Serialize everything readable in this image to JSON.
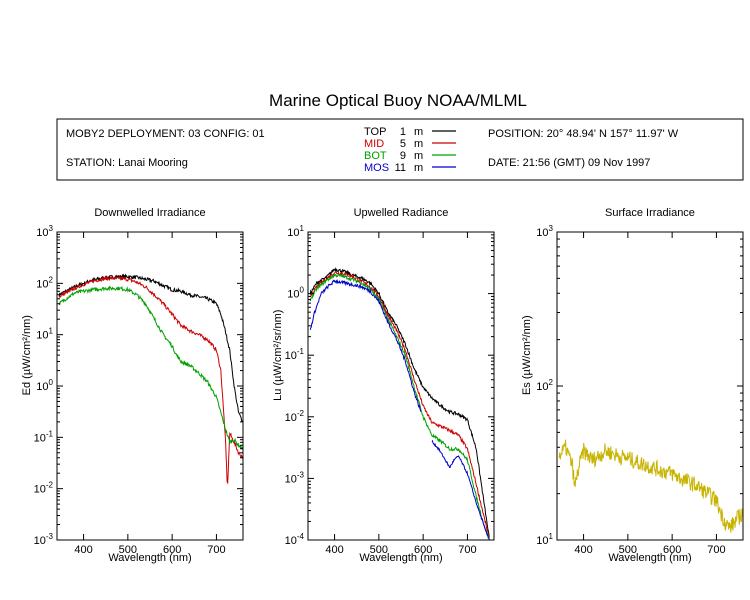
{
  "title": "Marine Optical Buoy NOAA/MLML",
  "info": {
    "deployment": "MOBY2 DEPLOYMENT: 03 CONFIG: 01",
    "station": "STATION: Lanai Mooring",
    "position": "POSITION: 20° 48.94' N   157° 11.97' W",
    "date": "DATE: 21:56 (GMT) 09 Nov 1997",
    "legend": [
      {
        "label": "TOP",
        "depth": "1",
        "unit": "m",
        "color": "#000000"
      },
      {
        "label": "MID",
        "depth": "5",
        "unit": "m",
        "color": "#cc0000"
      },
      {
        "label": "BOT",
        "depth": "9",
        "unit": "m",
        "color": "#00a000"
      },
      {
        "label": "MOS",
        "depth": "11",
        "unit": "m",
        "color": "#0000cc"
      }
    ]
  },
  "chart_data": [
    {
      "type": "line",
      "title": "Downwelled Irradiance",
      "xlabel": "Wavelength (nm)",
      "ylabel": "Ed  (µW/cm²/nm)",
      "xlim": [
        340,
        760
      ],
      "ylim": [
        0.001,
        1000
      ],
      "yscale": "log",
      "xticks": [
        400,
        500,
        600,
        700
      ],
      "yticks": [
        {
          "v": 0.001,
          "b": "10",
          "e": "-3"
        },
        {
          "v": 0.01,
          "b": "10",
          "e": "-2"
        },
        {
          "v": 0.1,
          "b": "10",
          "e": "-1"
        },
        {
          "v": 1,
          "b": "10",
          "e": "0"
        },
        {
          "v": 10,
          "b": "10",
          "e": "1"
        },
        {
          "v": 100,
          "b": "10",
          "e": "2"
        },
        {
          "v": 1000,
          "b": "10",
          "e": "3"
        }
      ],
      "series": [
        {
          "color": "#000000",
          "noise": 0.08,
          "x": [
            345,
            360,
            380,
            400,
            420,
            450,
            480,
            500,
            520,
            540,
            560,
            580,
            600,
            620,
            640,
            660,
            680,
            690,
            700,
            710,
            720,
            730,
            740,
            750,
            760
          ],
          "y": [
            60,
            70,
            85,
            100,
            115,
            130,
            135,
            135,
            130,
            120,
            110,
            90,
            75,
            70,
            60,
            55,
            50,
            45,
            40,
            25,
            12,
            5,
            1.0,
            0.3,
            0.2
          ]
        },
        {
          "color": "#cc0000",
          "noise": 0.08,
          "x": [
            345,
            360,
            380,
            400,
            420,
            450,
            480,
            500,
            520,
            540,
            560,
            580,
            600,
            620,
            640,
            660,
            680,
            700,
            710,
            720,
            725,
            730,
            740,
            750,
            760
          ],
          "y": [
            55,
            65,
            80,
            95,
            110,
            125,
            125,
            120,
            105,
            85,
            60,
            40,
            25,
            15,
            12,
            10,
            8,
            5,
            2,
            0.1,
            0.01,
            0.12,
            0.08,
            0.05,
            0.04
          ]
        },
        {
          "color": "#00a000",
          "noise": 0.08,
          "x": [
            345,
            360,
            380,
            400,
            420,
            450,
            480,
            500,
            520,
            540,
            560,
            580,
            600,
            610,
            620,
            640,
            660,
            680,
            700,
            710,
            720,
            730,
            740,
            750,
            760
          ],
          "y": [
            40,
            50,
            65,
            70,
            75,
            80,
            80,
            75,
            60,
            40,
            20,
            10,
            6,
            4,
            3,
            2.5,
            1.8,
            1.2,
            0.6,
            0.3,
            0.15,
            0.08,
            0.09,
            0.07,
            0.06
          ]
        }
      ]
    },
    {
      "type": "line",
      "title": "Upwelled Radiance",
      "xlabel": "Wavelength (nm)",
      "ylabel": "Lu  (µW/cm²/sr/nm)",
      "xlim": [
        340,
        760
      ],
      "ylim": [
        0.0001,
        10
      ],
      "yscale": "log",
      "xticks": [
        400,
        500,
        600,
        700
      ],
      "yticks": [
        {
          "v": 0.0001,
          "b": "10",
          "e": "-4"
        },
        {
          "v": 0.001,
          "b": "10",
          "e": "-3"
        },
        {
          "v": 0.01,
          "b": "10",
          "e": "-2"
        },
        {
          "v": 0.1,
          "b": "10",
          "e": "-1"
        },
        {
          "v": 1,
          "b": "10",
          "e": "0"
        },
        {
          "v": 10,
          "b": "10",
          "e": "1"
        }
      ],
      "series": [
        {
          "color": "#000000",
          "noise": 0.06,
          "x": [
            345,
            360,
            380,
            400,
            420,
            440,
            460,
            480,
            500,
            520,
            540,
            560,
            580,
            600,
            620,
            640,
            660,
            680,
            700,
            720,
            740,
            750
          ],
          "y": [
            1.0,
            1.5,
            1.8,
            2.5,
            2.3,
            2.0,
            1.8,
            1.5,
            1.0,
            0.5,
            0.3,
            0.15,
            0.06,
            0.03,
            0.02,
            0.015,
            0.012,
            0.011,
            0.009,
            0.003,
            0.0003,
            0.0001
          ]
        },
        {
          "color": "#cc0000",
          "noise": 0.06,
          "x": [
            345,
            360,
            380,
            400,
            420,
            440,
            460,
            480,
            500,
            520,
            540,
            560,
            580,
            600,
            620,
            640,
            660,
            680,
            700,
            720,
            740,
            750
          ],
          "y": [
            0.9,
            1.3,
            1.7,
            2.2,
            2.1,
            1.9,
            1.6,
            1.3,
            0.9,
            0.45,
            0.25,
            0.12,
            0.04,
            0.015,
            0.008,
            0.007,
            0.006,
            0.005,
            0.003,
            0.0008,
            0.0002,
            0.0001
          ]
        },
        {
          "color": "#00a000",
          "noise": 0.06,
          "x": [
            345,
            360,
            380,
            400,
            420,
            440,
            460,
            480,
            500,
            520,
            540,
            560,
            580,
            600,
            620,
            640,
            660,
            680,
            700,
            720,
            740,
            750
          ],
          "y": [
            0.8,
            1.2,
            1.6,
            2.0,
            1.9,
            1.7,
            1.5,
            1.2,
            0.8,
            0.4,
            0.2,
            0.1,
            0.03,
            0.01,
            0.005,
            0.004,
            0.003,
            0.003,
            0.002,
            0.0005,
            0.00015,
            0.0001
          ]
        },
        {
          "color": "#0000cc",
          "noise": 0.06,
          "x": [
            345,
            355,
            370,
            385,
            400,
            420,
            440,
            460,
            480,
            500,
            520,
            540,
            560,
            580,
            595
          ],
          "y": [
            0.25,
            0.5,
            1.0,
            1.3,
            1.6,
            1.5,
            1.4,
            1.3,
            1.1,
            0.75,
            0.35,
            0.18,
            0.08,
            0.025,
            0.012
          ]
        },
        {
          "color": "#0000cc",
          "noise": 0.04,
          "x": [
            620,
            635,
            650,
            660,
            670,
            680,
            700,
            720,
            740,
            750
          ],
          "y": [
            0.004,
            0.003,
            0.002,
            0.0015,
            0.002,
            0.0023,
            0.0012,
            0.0004,
            0.00015,
            0.0001
          ]
        }
      ]
    },
    {
      "type": "line",
      "title": "Surface Irradiance",
      "xlabel": "Wavelength (nm)",
      "ylabel": "Es  (µW/cm²/nm)",
      "xlim": [
        340,
        760
      ],
      "ylim": [
        10,
        1000
      ],
      "yscale": "log",
      "xticks": [
        400,
        500,
        600,
        700
      ],
      "yticks": [
        {
          "v": 10,
          "b": "10",
          "e": "1"
        },
        {
          "v": 100,
          "b": "10",
          "e": "2"
        },
        {
          "v": 1000,
          "b": "10",
          "e": "3"
        }
      ],
      "series": [
        {
          "color": "#c8b400",
          "noise": 0.12,
          "x": [
            345,
            360,
            375,
            380,
            390,
            400,
            420,
            450,
            480,
            500,
            520,
            550,
            580,
            600,
            620,
            650,
            680,
            700,
            710,
            720,
            730,
            740,
            750,
            760
          ],
          "y": [
            35,
            40,
            30,
            22,
            30,
            38,
            33,
            38,
            35,
            34,
            32,
            30,
            28,
            27,
            25,
            23,
            20,
            18,
            15,
            13,
            12,
            13,
            14,
            15
          ]
        }
      ]
    }
  ]
}
